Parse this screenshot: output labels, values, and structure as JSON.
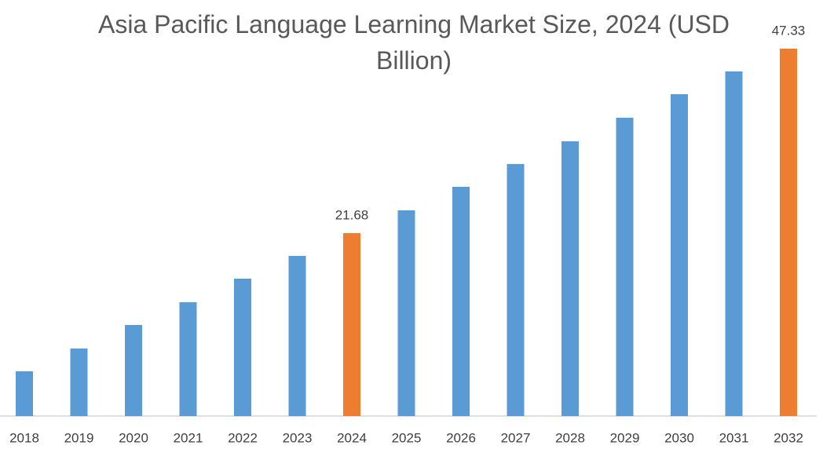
{
  "chart_data": {
    "type": "bar",
    "title": "Asia Pacific Language Learning Market Size, 2024 (USD Billion)",
    "categories": [
      "2018",
      "2019",
      "2020",
      "2021",
      "2022",
      "2023",
      "2024",
      "2025",
      "2026",
      "2027",
      "2028",
      "2029",
      "2030",
      "2031",
      "2032"
    ],
    "values": [
      2.47,
      5.64,
      8.91,
      12.08,
      15.35,
      18.52,
      21.68,
      24.85,
      28.12,
      31.29,
      34.45,
      37.73,
      41.0,
      44.17,
      47.33
    ],
    "color": "#5b9bd5",
    "highlight_color": "#ed7d31",
    "highlight": [
      "2024",
      "2032"
    ],
    "ylim": [
      -3.75,
      50
    ]
  }
}
